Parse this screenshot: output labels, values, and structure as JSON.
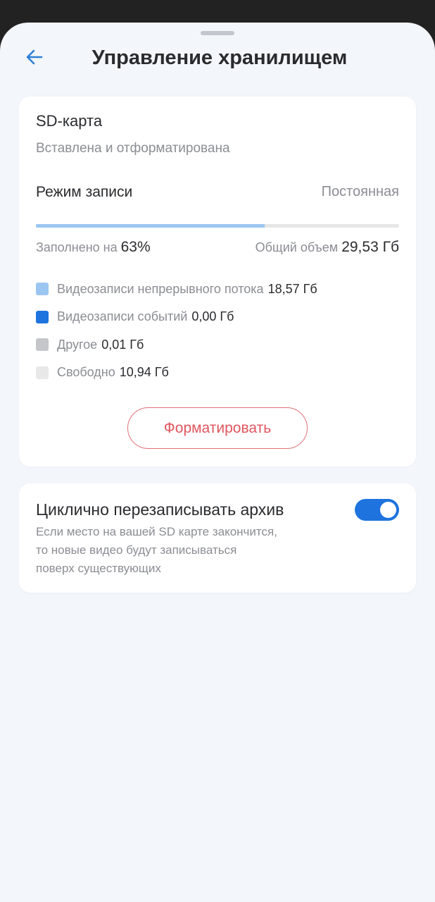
{
  "header": {
    "title": "Управление хранилищем",
    "back_icon": "arrow-left-icon"
  },
  "sd_card": {
    "title": "SD-карта",
    "status": "Вставлена и отформатирована",
    "recording_mode_label": "Режим записи",
    "recording_mode_value": "Постоянная",
    "fill_percent": 63,
    "filled_label": "Заполнено на",
    "filled_value": "63%",
    "total_label": "Общий объем",
    "total_value": "29,53 Гб",
    "legend": [
      {
        "label": "Видеозаписи непрерывного потока",
        "value": "18,57 Гб",
        "color": "#9cc6f2"
      },
      {
        "label": "Видеозаписи событий",
        "value": "0,00 Гб",
        "color": "#1e73de"
      },
      {
        "label": "Другое",
        "value": "0,01 Гб",
        "color": "#c4c6ca"
      },
      {
        "label": "Свободно",
        "value": "10,94 Гб",
        "color": "#e8e8e8"
      }
    ],
    "format_button": "Форматировать"
  },
  "overwrite": {
    "title": "Циклично перезаписывать архив",
    "description_lines": [
      "Если место на вашей SD карте закончится,",
      "то новые видео будут записываться",
      "поверх существующих"
    ],
    "enabled": true
  },
  "colors": {
    "accent": "#1e73de",
    "danger": "#e0565e",
    "background": "#f3f6fa"
  }
}
